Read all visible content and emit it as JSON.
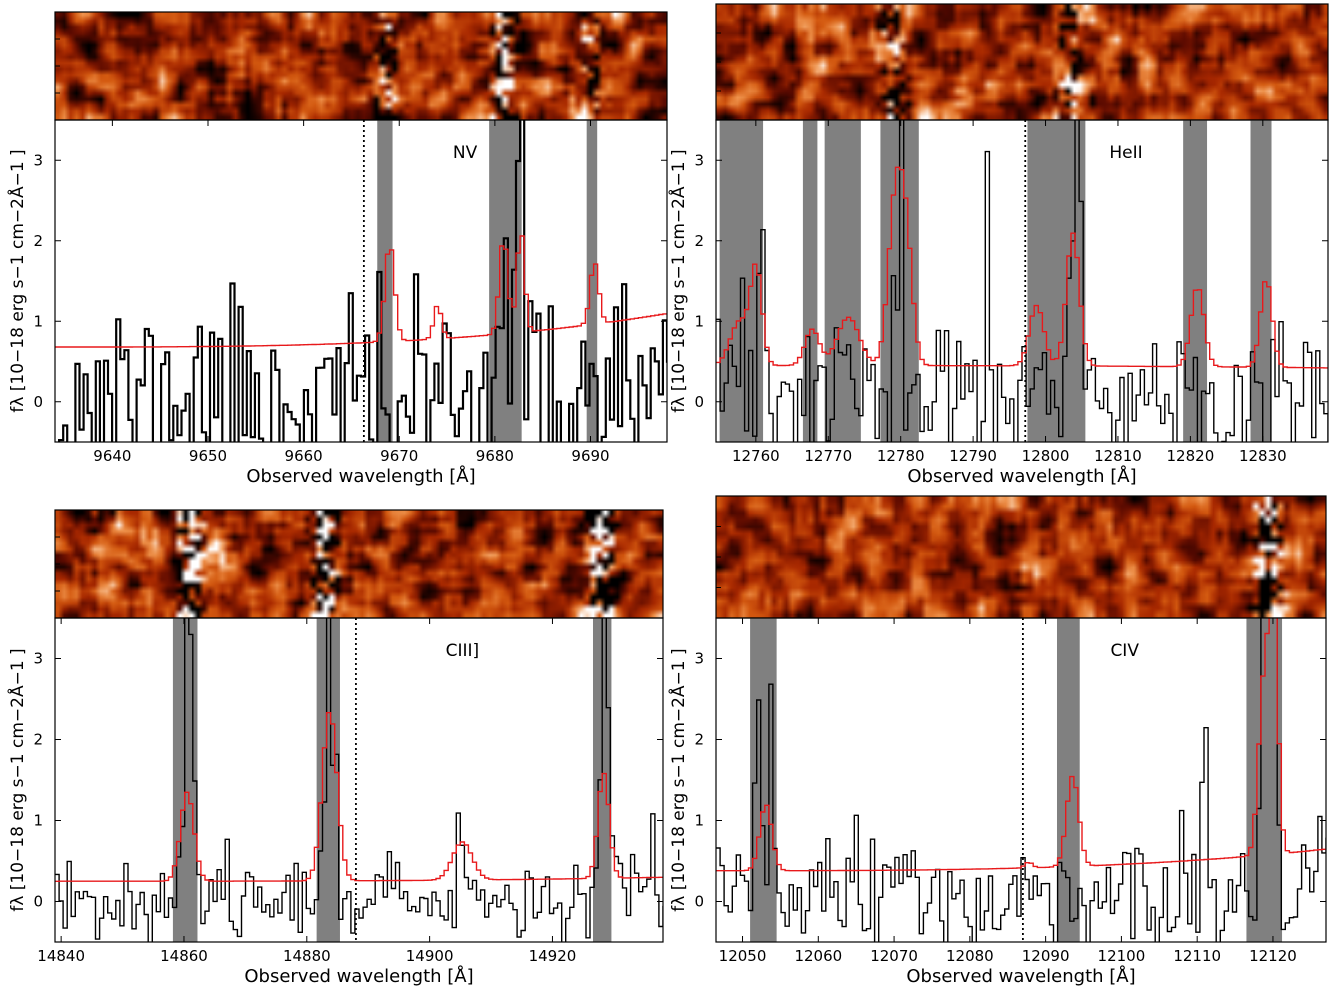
{
  "figure": {
    "shared_xlabel": "Observed wavelength [Å]",
    "shared_ylabel": "fλ [10−18 erg s−1 cm−2Å−1 ]"
  },
  "colors": {
    "flux": "#000000",
    "noise": "#e8191b",
    "mask": "#808080",
    "twod_palette": [
      "#000000",
      "#5a0800",
      "#a22a00",
      "#d45a10",
      "#f09050",
      "#ffffff"
    ]
  },
  "chart_data": [
    {
      "type": "line",
      "panel": "top-left",
      "line_label": "NV",
      "xlabel": "Observed wavelength [Å]",
      "ylabel": "fλ [10−18 erg s−1 cm−2Å−1 ]",
      "xlim": [
        9634,
        9698
      ],
      "ylim": [
        -0.5,
        3.5
      ],
      "xticks": [
        9640,
        9650,
        9660,
        9670,
        9680,
        9690
      ],
      "yticks": [
        0,
        1,
        2,
        3
      ],
      "line_center": 9666.3,
      "masked_regions": [
        [
          9667.7,
          9669.3
        ],
        [
          9679.4,
          9682.8
        ],
        [
          9689.6,
          9690.7
        ]
      ],
      "noise_baseline": 0.68,
      "noise_end": 1.1,
      "noise_peaks": [
        [
          9668.8,
          1.9,
          0.5
        ],
        [
          9673.8,
          1.1,
          0.4
        ],
        [
          9680.7,
          1.88,
          0.45
        ],
        [
          9682.5,
          1.95,
          0.4
        ],
        [
          9690.2,
          1.45,
          0.45
        ]
      ],
      "flux_seed": 11,
      "flux_lw": 2.2,
      "flux_sigma": 0.62,
      "flux_lines": [
        [
          9680.8,
          1.6,
          0.6
        ],
        [
          9682.5,
          1.6,
          0.4
        ]
      ],
      "twod_seed": 101,
      "twod_streaks": [
        [
          9668.5,
          1.4
        ],
        [
          9681.0,
          2.0
        ],
        [
          9690.2,
          1.0
        ]
      ]
    },
    {
      "type": "line",
      "panel": "top-right",
      "line_label": "HeII",
      "xlabel": "Observed wavelength [Å]",
      "ylabel": "fλ [10−18 erg s−1 cm−2Å−1 ]",
      "xlim": [
        12754.5,
        12839
      ],
      "ylim": [
        -0.5,
        3.5
      ],
      "xticks": [
        12760,
        12770,
        12780,
        12790,
        12800,
        12810,
        12820,
        12830
      ],
      "yticks": [
        0,
        1,
        2,
        3
      ],
      "line_center": 12797.2,
      "masked_regions": [
        [
          12755,
          12761
        ],
        [
          12766.5,
          12768.5
        ],
        [
          12769.5,
          12774.5
        ],
        [
          12777.2,
          12782.5
        ],
        [
          12797.5,
          12805.5
        ],
        [
          12819,
          12822.3
        ],
        [
          12828.3,
          12831.2
        ]
      ],
      "noise_baseline": 0.45,
      "noise_end": 0.42,
      "noise_peaks": [
        [
          12757.5,
          1.0,
          1.3
        ],
        [
          12759.8,
          1.6,
          0.8
        ],
        [
          12767.5,
          0.9,
          1.0
        ],
        [
          12772.5,
          1.05,
          1.5
        ],
        [
          12779,
          2.45,
          1.0
        ],
        [
          12780.5,
          1.8,
          0.9
        ],
        [
          12798.5,
          1.2,
          1.0
        ],
        [
          12803.5,
          2.1,
          0.9
        ],
        [
          12820.7,
          1.45,
          0.9
        ],
        [
          12830.2,
          1.55,
          0.8
        ]
      ],
      "flux_seed": 23,
      "flux_lw": 1.4,
      "flux_sigma": 0.55,
      "flux_lines": [
        [
          12760.5,
          2.3,
          0.4
        ],
        [
          12779.2,
          2.2,
          0.5
        ],
        [
          12791.8,
          2.2,
          0.3
        ],
        [
          12804.2,
          3.2,
          0.4
        ]
      ],
      "twod_seed": 202,
      "twod_streaks": [
        [
          12779,
          1.5
        ],
        [
          12803,
          1.5
        ]
      ]
    },
    {
      "type": "line",
      "panel": "bottom-left",
      "line_label": "CIII]",
      "xlabel": "Observed wavelength [Å]",
      "ylabel": "fλ [10−18 erg s−1 cm−2Å−1 ]",
      "xlim": [
        14839,
        14938
      ],
      "ylim": [
        -0.5,
        3.5
      ],
      "xticks": [
        14840,
        14860,
        14880,
        14900,
        14920
      ],
      "yticks": [
        0,
        1,
        2,
        3
      ],
      "line_center": 14888,
      "masked_regions": [
        [
          14858.2,
          14862.2
        ],
        [
          14881.6,
          14885.4
        ],
        [
          14926.6,
          14929.6
        ]
      ],
      "noise_baseline": 0.25,
      "noise_end": 0.3,
      "noise_peaks": [
        [
          14860.2,
          1.35,
          1.1
        ],
        [
          14883.4,
          2.35,
          1.2
        ],
        [
          14905,
          0.72,
          1.6
        ],
        [
          14928,
          1.55,
          0.9
        ]
      ],
      "flux_seed": 37,
      "flux_lw": 1.4,
      "flux_sigma": 0.33,
      "flux_lines": [
        [
          14860.5,
          4.0,
          0.6
        ],
        [
          14883.4,
          4.0,
          0.8
        ],
        [
          14928.2,
          4.0,
          0.7
        ],
        [
          14936,
          1.4,
          0.4
        ]
      ],
      "twod_seed": 303,
      "twod_streaks": [
        [
          14861,
          3.0
        ],
        [
          14883,
          3.0
        ],
        [
          14928,
          3.0
        ]
      ]
    },
    {
      "type": "line",
      "panel": "bottom-right",
      "line_label": "CIV",
      "xlabel": "Observed wavelength [Å]",
      "ylabel": "fλ [10−18 erg s−1 cm−2Å−1 ]",
      "xlim": [
        12046.5,
        12127
      ],
      "ylim": [
        -0.5,
        3.5
      ],
      "xticks": [
        12050,
        12060,
        12070,
        12080,
        12090,
        12100,
        12110,
        12120
      ],
      "yticks": [
        0,
        1,
        2,
        3
      ],
      "line_center": 12087,
      "masked_regions": [
        [
          12051,
          12054.5
        ],
        [
          12091.5,
          12094.5
        ],
        [
          12116.5,
          12121.2
        ]
      ],
      "noise_baseline": 0.38,
      "noise_end": 0.65,
      "noise_peaks": [
        [
          12052.8,
          1.2,
          0.8
        ],
        [
          12087.5,
          0.45,
          0.5
        ],
        [
          12093.3,
          1.5,
          0.8
        ],
        [
          12118.5,
          2.4,
          0.7
        ],
        [
          12119.8,
          3.35,
          0.6
        ]
      ],
      "flux_seed": 51,
      "flux_lw": 1.4,
      "flux_sigma": 0.42,
      "flux_lines": [
        [
          12051.8,
          2.1,
          0.35
        ],
        [
          12053.5,
          2.4,
          0.35
        ],
        [
          12110.8,
          2.55,
          0.35
        ],
        [
          12118.5,
          3.5,
          0.5
        ],
        [
          12119.8,
          3.3,
          0.4
        ],
        [
          12126,
          1.6,
          0.35
        ]
      ],
      "twod_seed": 404,
      "twod_streaks": [
        [
          12119.3,
          3.0
        ]
      ]
    }
  ]
}
